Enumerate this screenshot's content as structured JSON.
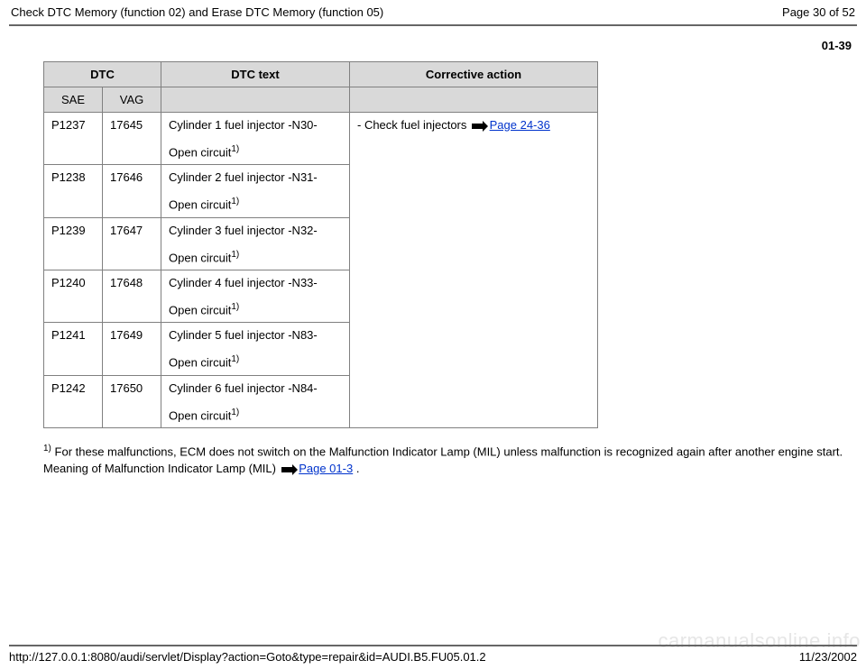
{
  "header": {
    "title": "Check DTC Memory (function 02) and Erase DTC Memory (function 05)",
    "page_label": "Page 30 of 52"
  },
  "page_code": "01-39",
  "table": {
    "header": {
      "dtc": "DTC",
      "dtc_text": "DTC text",
      "corrective": "Corrective action",
      "sae": "SAE",
      "vag": "VAG"
    },
    "corrective_action": {
      "prefix": "- Check fuel injectors ",
      "page_ref": "Page 24-36"
    },
    "rows": [
      {
        "sae": "P1237",
        "vag": "17645",
        "text_main": "Cylinder 1 fuel injector -N30-",
        "text_sub": "Open circuit",
        "text_sup": "1)"
      },
      {
        "sae": "P1238",
        "vag": "17646",
        "text_main": "Cylinder 2 fuel injector -N31-",
        "text_sub": "Open circuit",
        "text_sup": "1)"
      },
      {
        "sae": "P1239",
        "vag": "17647",
        "text_main": "Cylinder 3 fuel injector -N32-",
        "text_sub": "Open circuit",
        "text_sup": "1)"
      },
      {
        "sae": "P1240",
        "vag": "17648",
        "text_main": "Cylinder 4 fuel injector -N33-",
        "text_sub": "Open circuit",
        "text_sup": "1)"
      },
      {
        "sae": "P1241",
        "vag": "17649",
        "text_main": "Cylinder 5 fuel injector -N83-",
        "text_sub": "Open circuit",
        "text_sup": "1)"
      },
      {
        "sae": "P1242",
        "vag": "17650",
        "text_main": "Cylinder 6 fuel injector -N84-",
        "text_sub": "Open circuit",
        "text_sup": "1)"
      }
    ]
  },
  "footnote": {
    "sup": "1)",
    "text_before": " For these malfunctions, ECM does not switch on the Malfunction Indicator Lamp (MIL) unless malfunction is recognized again after another engine start. Meaning of Malfunction Indicator Lamp (MIL) ",
    "page_ref": "Page 01-3",
    "text_after": " ."
  },
  "footer": {
    "url": "http://127.0.0.1:8080/audi/servlet/Display?action=Goto&type=repair&id=AUDI.B5.FU05.01.2",
    "date": "11/23/2002"
  },
  "watermark": "carmanualsonline.info",
  "colors": {
    "header_bg": "#d9d9d9",
    "border": "#808080",
    "link": "#0033cc",
    "rule": "#666666",
    "watermark": "#e6e6e6"
  }
}
